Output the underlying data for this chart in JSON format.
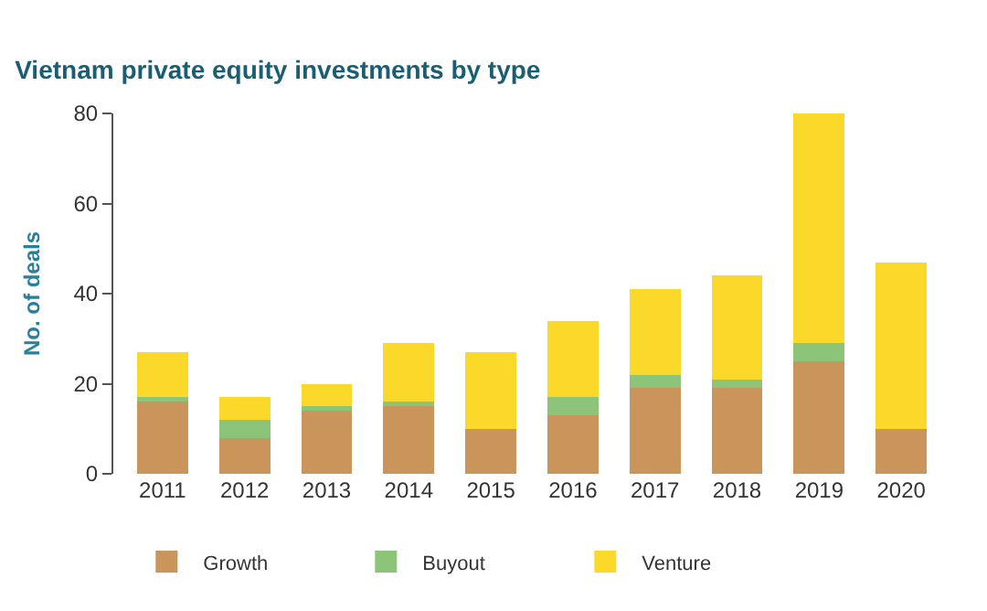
{
  "chart_data": {
    "type": "bar",
    "title": "Vietnam private equity investments by type",
    "ylabel": "No. of deals",
    "categories": [
      "2011",
      "2012",
      "2013",
      "2014",
      "2015",
      "2016",
      "2017",
      "2018",
      "2019",
      "2020"
    ],
    "stacked": true,
    "series": [
      {
        "name": "Growth",
        "color": "#c9955a",
        "values": [
          16,
          8,
          14,
          15,
          10,
          13,
          19,
          19,
          25,
          10
        ]
      },
      {
        "name": "Buyout",
        "color": "#8cc47a",
        "values": [
          1,
          4,
          1,
          1,
          0,
          4,
          3,
          2,
          4,
          0
        ]
      },
      {
        "name": "Venture",
        "color": "#fbd92a",
        "values": [
          10,
          5,
          5,
          13,
          17,
          17,
          19,
          23,
          51,
          37
        ]
      }
    ],
    "ylim": [
      0,
      80
    ],
    "yticks": [
      0,
      20,
      40,
      60,
      80
    ],
    "legend": "bottom"
  }
}
